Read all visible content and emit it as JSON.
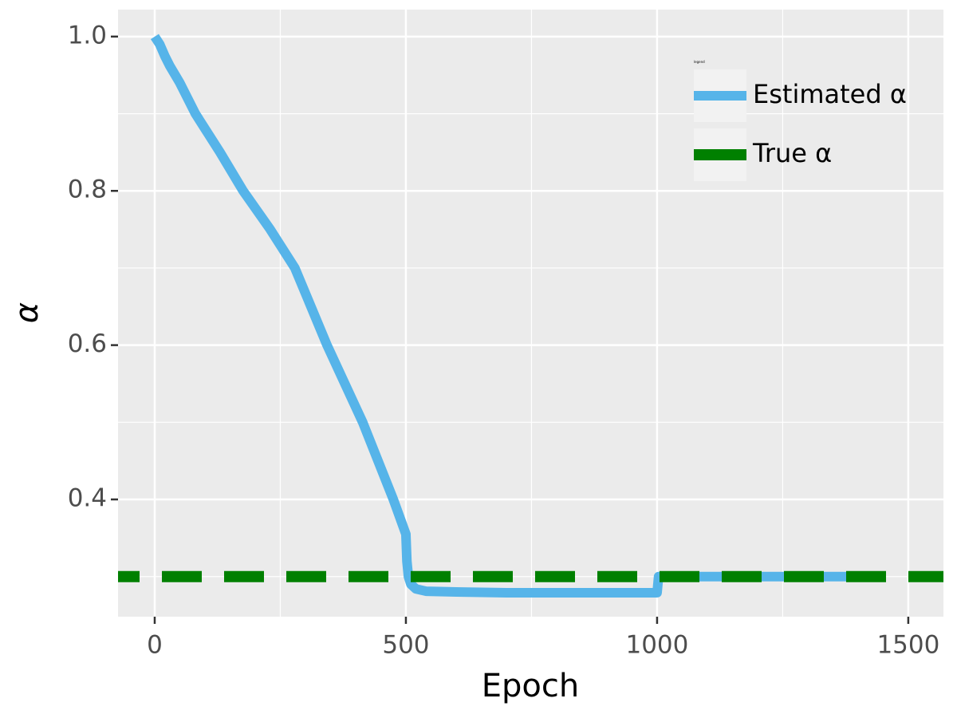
{
  "chart_data": {
    "type": "line",
    "xlabel": "Epoch",
    "ylabel": "α",
    "xlim": [
      -73,
      1570
    ],
    "ylim": [
      0.248,
      1.035
    ],
    "xticks": [
      0,
      500,
      1000,
      1500
    ],
    "yticks": [
      0.4,
      0.6,
      0.8,
      {
        "value": 1,
        "label": "1.0"
      }
    ],
    "xminor": [
      250,
      750,
      1250
    ],
    "yminor": [
      0.3,
      0.5,
      0.7,
      0.9
    ],
    "grid": true,
    "legend_title": "legend",
    "legend_position": "top-right",
    "series": [
      {
        "name": "Estimated α",
        "color": "#56B4E9",
        "x": [
          0,
          10,
          20,
          30,
          50,
          81,
          130,
          176,
          230,
          279,
          343,
          414,
          475,
          500,
          502,
          505,
          510,
          520,
          540,
          600,
          700,
          800,
          900,
          1000,
          1003,
          1100,
          1200,
          1300,
          1420
        ],
        "values": [
          1.0,
          0.99,
          0.975,
          0.962,
          0.94,
          0.9,
          0.85,
          0.8,
          0.75,
          0.7,
          0.6,
          0.5,
          0.4,
          0.355,
          0.32,
          0.3,
          0.29,
          0.284,
          0.281,
          0.28,
          0.279,
          0.279,
          0.279,
          0.279,
          0.3,
          0.3,
          0.3,
          0.3,
          0.3
        ]
      }
    ],
    "hlines": [
      {
        "name": "True α",
        "color": "#008000",
        "value": 0.3,
        "dashed": true
      }
    ]
  }
}
